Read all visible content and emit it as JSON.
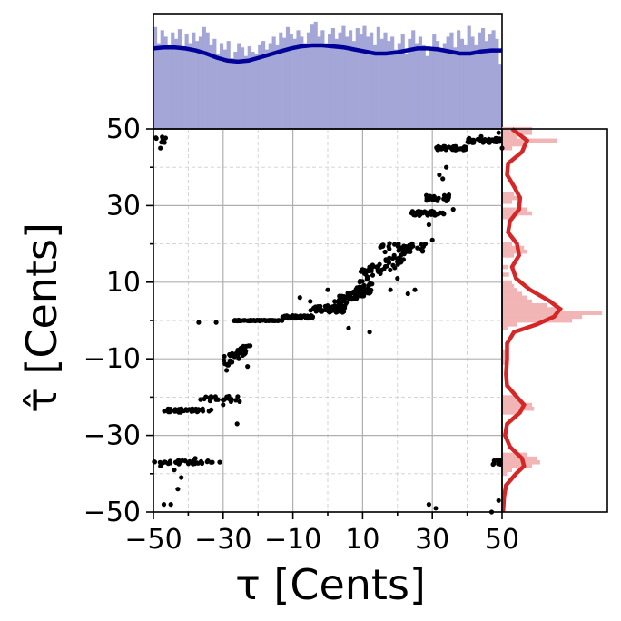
{
  "colors": {
    "points": "#000000",
    "top_hist_fill": "#a3a6d6",
    "top_kde_line": "#000099",
    "right_hist_fill": "#f2b5b5",
    "right_kde_line": "#d62728",
    "grid": "#b0b0b0"
  },
  "chart_data": {
    "type": "scatter",
    "xlabel": "τ [Cents]",
    "ylabel": "τ̂ [Cents]",
    "xlim": [
      -50,
      50
    ],
    "ylim": [
      -50,
      50
    ],
    "xticks": [
      "−50",
      "−30",
      "−10",
      "10",
      "30",
      "50"
    ],
    "yticks": [
      "−50",
      "−30",
      "−10",
      "10",
      "30",
      "50"
    ],
    "xtick_values": [
      -50,
      -30,
      -10,
      10,
      30,
      50
    ],
    "ytick_values": [
      -50,
      -30,
      -10,
      10,
      30,
      50
    ],
    "grid": true,
    "clusters": [
      {
        "x_from": -50,
        "x_to": -46,
        "y": 47,
        "spread": 1.5,
        "count": 10
      },
      {
        "x_from": -50,
        "x_to": -33,
        "y": -37,
        "spread": 0.8,
        "count": 40
      },
      {
        "x_from": -47,
        "x_to": -33,
        "y": -23.5,
        "spread": 0.8,
        "count": 40
      },
      {
        "x_from": -37,
        "x_to": -25,
        "y": -20.5,
        "spread": 1.2,
        "count": 25
      },
      {
        "x_from": -30,
        "x_to": -22,
        "y": -9,
        "spread": 2.5,
        "count": 40
      },
      {
        "x_from": -27,
        "x_to": -13,
        "y": 0,
        "spread": 0.2,
        "count": 60
      },
      {
        "x_from": -13,
        "x_to": -4,
        "y": 1,
        "spread": 0.5,
        "count": 45
      },
      {
        "x_from": -5,
        "x_to": 5,
        "y": 3,
        "spread": 1.5,
        "count": 60
      },
      {
        "x_from": 3,
        "x_to": 13,
        "y": 7,
        "spread": 2.5,
        "count": 80
      },
      {
        "x_from": 9,
        "x_to": 22,
        "y": 14,
        "spread": 3,
        "count": 55
      },
      {
        "x_from": 15,
        "x_to": 28,
        "y": 19,
        "spread": 2,
        "count": 40
      },
      {
        "x_from": 24,
        "x_to": 34,
        "y": 28,
        "spread": 1,
        "count": 40
      },
      {
        "x_from": 27,
        "x_to": 35,
        "y": 32,
        "spread": 1.5,
        "count": 25
      },
      {
        "x_from": 31,
        "x_to": 40,
        "y": 45,
        "spread": 0.8,
        "count": 40
      },
      {
        "x_from": 40,
        "x_to": 50,
        "y": 47,
        "spread": 1,
        "count": 40
      },
      {
        "x_from": 47,
        "x_to": 50,
        "y": -37,
        "spread": 1,
        "count": 10
      }
    ],
    "isolated_points": [
      [
        -42,
        -41
      ],
      [
        -43,
        -44
      ],
      [
        -45,
        -48
      ],
      [
        -47,
        -48
      ],
      [
        -38,
        -36
      ],
      [
        -31,
        -37
      ],
      [
        -37,
        -0.5
      ],
      [
        -32,
        -0.5
      ],
      [
        -26,
        -27
      ],
      [
        -30,
        -22
      ],
      [
        -23,
        -12
      ],
      [
        -29,
        -13
      ],
      [
        -48,
        -38
      ],
      [
        -44,
        -39
      ],
      [
        -8,
        6
      ],
      [
        -5,
        5
      ],
      [
        0,
        8
      ],
      [
        2,
        5
      ],
      [
        6,
        -2
      ],
      [
        12,
        -3
      ],
      [
        18,
        8
      ],
      [
        23,
        7
      ],
      [
        25,
        8
      ],
      [
        20,
        11
      ],
      [
        29,
        25
      ],
      [
        28,
        20
      ],
      [
        30,
        21
      ],
      [
        32,
        38
      ],
      [
        34,
        40
      ],
      [
        33,
        37
      ],
      [
        36,
        29
      ],
      [
        29,
        -48
      ],
      [
        31,
        -49
      ],
      [
        47,
        -50
      ],
      [
        49,
        -47
      ],
      [
        44,
        48
      ],
      [
        49,
        49
      ],
      [
        50,
        45
      ],
      [
        -48,
        45
      ]
    ],
    "top_histogram": {
      "bins": 100,
      "density": [
        0.95,
        0.8,
        0.92,
        0.86,
        0.78,
        0.9,
        0.84,
        0.93,
        0.75,
        0.88,
        0.8,
        0.9,
        0.82,
        0.86,
        0.95,
        0.9,
        0.78,
        0.84,
        0.7,
        0.8,
        0.74,
        0.82,
        0.66,
        0.72,
        0.8,
        0.76,
        0.68,
        0.77,
        0.72,
        0.7,
        0.78,
        0.82,
        0.74,
        0.8,
        0.86,
        0.78,
        0.9,
        0.85,
        0.95,
        0.88,
        0.84,
        0.92,
        0.86,
        0.8,
        0.9,
        0.98,
        1.0,
        0.86,
        0.92,
        0.8,
        0.88,
        0.94,
        0.84,
        0.9,
        0.96,
        0.86,
        0.92,
        0.82,
        0.94,
        0.88,
        0.96,
        0.86,
        0.9,
        0.78,
        0.95,
        0.84,
        0.9,
        0.82,
        0.86,
        0.74,
        0.8,
        0.88,
        0.7,
        0.84,
        0.92,
        0.8,
        0.86,
        0.78,
        0.68,
        0.75,
        0.88,
        0.82,
        0.72,
        0.8,
        0.86,
        0.9,
        0.76,
        0.92,
        0.84,
        0.78,
        0.96,
        0.86,
        0.78,
        0.9,
        0.94,
        0.82,
        0.88,
        0.92,
        0.84,
        0.6
      ],
      "kde": [
        0.79,
        0.8,
        0.8,
        0.79,
        0.77,
        0.74,
        0.7,
        0.67,
        0.66,
        0.67,
        0.7,
        0.73,
        0.76,
        0.79,
        0.81,
        0.82,
        0.82,
        0.81,
        0.8,
        0.78,
        0.76,
        0.74,
        0.74,
        0.75,
        0.77,
        0.79,
        0.79,
        0.78,
        0.76,
        0.74,
        0.74,
        0.76,
        0.77,
        0.77
      ]
    },
    "right_histogram": {
      "bins": 100,
      "density_by_y": [
        {
          "y": 50,
          "v": 0.3
        },
        {
          "y": 49,
          "v": 0.3
        },
        {
          "y": 48,
          "v": 0.15
        },
        {
          "y": 47,
          "v": 0.55
        },
        {
          "y": 46,
          "v": 0.25
        },
        {
          "y": 45,
          "v": 0.1
        },
        {
          "y": 33,
          "v": 0.12
        },
        {
          "y": 32,
          "v": 0.2
        },
        {
          "y": 31,
          "v": 0.1
        },
        {
          "y": 29,
          "v": 0.25
        },
        {
          "y": 28,
          "v": 0.3
        },
        {
          "y": 27,
          "v": 0.1
        },
        {
          "y": 20,
          "v": 0.1
        },
        {
          "y": 19,
          "v": 0.22
        },
        {
          "y": 18,
          "v": 0.25
        },
        {
          "y": 17,
          "v": 0.12
        },
        {
          "y": 14,
          "v": 0.06
        },
        {
          "y": 12,
          "v": 0.07
        },
        {
          "y": 10,
          "v": 0.1
        },
        {
          "y": 9,
          "v": 0.12
        },
        {
          "y": 8,
          "v": 0.15
        },
        {
          "y": 7,
          "v": 0.2
        },
        {
          "y": 6,
          "v": 0.25
        },
        {
          "y": 5,
          "v": 0.3
        },
        {
          "y": 4,
          "v": 0.45
        },
        {
          "y": 3,
          "v": 0.6
        },
        {
          "y": 2,
          "v": 1.0
        },
        {
          "y": 1,
          "v": 0.8
        },
        {
          "y": 0,
          "v": 0.7
        },
        {
          "y": -1,
          "v": 0.15
        },
        {
          "y": -2,
          "v": 0.06
        },
        {
          "y": -8,
          "v": 0.05
        },
        {
          "y": -9,
          "v": 0.06
        },
        {
          "y": -10,
          "v": 0.05
        },
        {
          "y": -11,
          "v": 0.04
        },
        {
          "y": -20,
          "v": 0.15
        },
        {
          "y": -21,
          "v": 0.2
        },
        {
          "y": -22,
          "v": 0.3
        },
        {
          "y": -23,
          "v": 0.32
        },
        {
          "y": -24,
          "v": 0.15
        },
        {
          "y": -35,
          "v": 0.25
        },
        {
          "y": -36,
          "v": 0.35
        },
        {
          "y": -37,
          "v": 0.38
        },
        {
          "y": -38,
          "v": 0.3
        },
        {
          "y": -39,
          "v": 0.1
        },
        {
          "y": -40,
          "v": 0.05
        }
      ],
      "kde": [
        {
          "y": 50,
          "v": 0.1
        },
        {
          "y": 47,
          "v": 0.25
        },
        {
          "y": 44,
          "v": 0.2
        },
        {
          "y": 41,
          "v": 0.06
        },
        {
          "y": 38,
          "v": 0.05
        },
        {
          "y": 35,
          "v": 0.12
        },
        {
          "y": 32,
          "v": 0.18
        },
        {
          "y": 29,
          "v": 0.17
        },
        {
          "y": 26,
          "v": 0.08
        },
        {
          "y": 23,
          "v": 0.06
        },
        {
          "y": 20,
          "v": 0.15
        },
        {
          "y": 17,
          "v": 0.17
        },
        {
          "y": 14,
          "v": 0.1
        },
        {
          "y": 11,
          "v": 0.14
        },
        {
          "y": 8,
          "v": 0.28
        },
        {
          "y": 5,
          "v": 0.48
        },
        {
          "y": 3,
          "v": 0.58
        },
        {
          "y": 1,
          "v": 0.52
        },
        {
          "y": -1,
          "v": 0.35
        },
        {
          "y": -3,
          "v": 0.12
        },
        {
          "y": -6,
          "v": 0.05
        },
        {
          "y": -10,
          "v": 0.05
        },
        {
          "y": -14,
          "v": 0.04
        },
        {
          "y": -17,
          "v": 0.05
        },
        {
          "y": -20,
          "v": 0.15
        },
        {
          "y": -22,
          "v": 0.22
        },
        {
          "y": -24,
          "v": 0.18
        },
        {
          "y": -27,
          "v": 0.05
        },
        {
          "y": -30,
          "v": 0.03
        },
        {
          "y": -33,
          "v": 0.08
        },
        {
          "y": -36,
          "v": 0.2
        },
        {
          "y": -38,
          "v": 0.22
        },
        {
          "y": -40,
          "v": 0.14
        },
        {
          "y": -43,
          "v": 0.04
        },
        {
          "y": -46,
          "v": 0.02
        },
        {
          "y": -50,
          "v": 0.01
        }
      ]
    }
  }
}
